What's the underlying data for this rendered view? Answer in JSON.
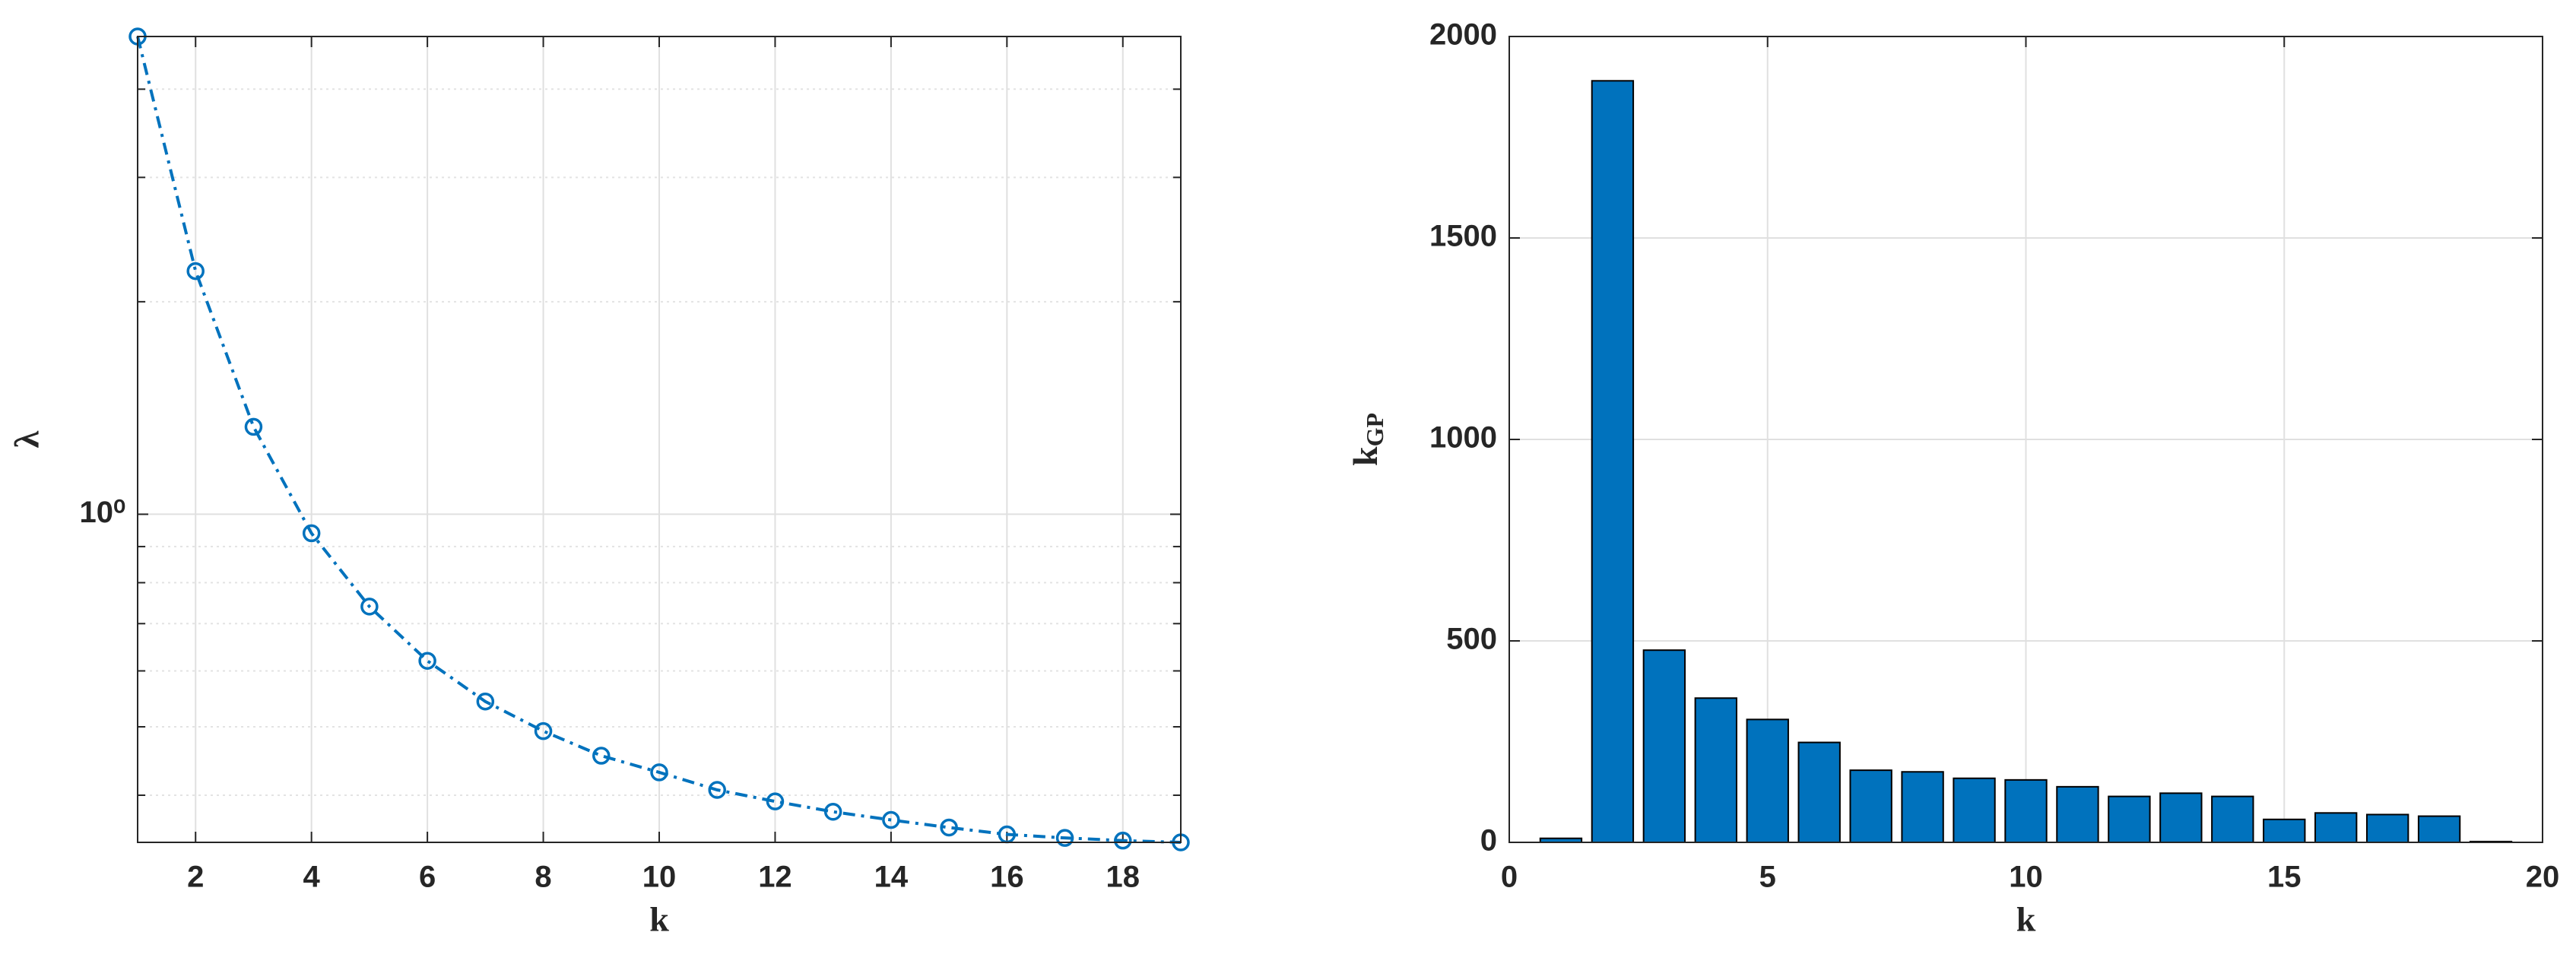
{
  "chart_data": [
    {
      "type": "line",
      "xlabel": "k",
      "ylabel": "λ",
      "log_y": true,
      "grid": true,
      "color": "#0072bd",
      "x": [
        1,
        2,
        3,
        4,
        5,
        6,
        7,
        8,
        9,
        10,
        11,
        12,
        13,
        14,
        15,
        16,
        17,
        18,
        19
      ],
      "values": [
        4.75,
        2.21,
        1.33,
        0.94,
        0.74,
        0.62,
        0.543,
        0.493,
        0.455,
        0.431,
        0.407,
        0.392,
        0.379,
        0.369,
        0.36,
        0.352,
        0.348,
        0.345,
        0.343
      ],
      "xlim": [
        1,
        19
      ],
      "xticks": [
        2,
        4,
        6,
        8,
        10,
        12,
        14,
        16,
        18
      ],
      "ylim": [
        0.343,
        4.75
      ],
      "yticks": [
        {
          "value": 1,
          "label": "10⁰"
        }
      ],
      "minor_grid_y": [
        0.4,
        0.5,
        0.6,
        0.7,
        0.8,
        0.9,
        2,
        3,
        4
      ]
    },
    {
      "type": "bar",
      "xlabel": "k",
      "ylabel": [
        "k",
        "GP"
      ],
      "grid": true,
      "color": "#0072bd",
      "x": [
        1,
        2,
        3,
        4,
        5,
        6,
        7,
        8,
        9,
        10,
        11,
        12,
        13,
        14,
        15,
        16,
        17,
        18,
        19
      ],
      "values": [
        10,
        1890,
        477,
        358,
        305,
        248,
        179,
        175,
        159,
        155,
        138,
        114,
        122,
        114,
        57,
        73,
        69,
        65,
        2
      ],
      "xlim": [
        0,
        20
      ],
      "xticks": [
        0,
        5,
        10,
        15,
        20
      ],
      "ylim": [
        0,
        2000
      ],
      "yticks": [
        0,
        500,
        1000,
        1500,
        2000
      ]
    }
  ]
}
